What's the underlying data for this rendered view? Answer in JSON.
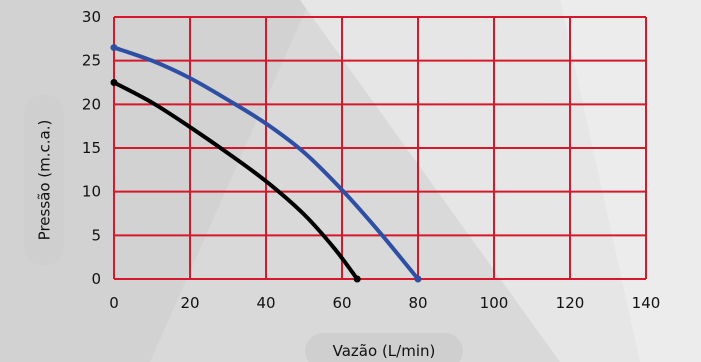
{
  "chart_data": {
    "type": "line",
    "title": "",
    "xlabel": "Vazão (L/min)",
    "ylabel": "Pressão (m.c.a.)",
    "xlim": [
      0,
      140
    ],
    "ylim": [
      0,
      30
    ],
    "x_ticks": [
      "0",
      "20",
      "40",
      "60",
      "80",
      "100",
      "120",
      "140"
    ],
    "y_ticks": [
      "0",
      "5",
      "10",
      "15",
      "20",
      "25",
      "30"
    ],
    "grid": true,
    "colors": {
      "grid": "#d6182b",
      "series_blue": "#2e4fa3",
      "series_black": "#000000"
    },
    "series": [
      {
        "color": "#2e4fa3",
        "points": [
          [
            0,
            26.5
          ],
          [
            10,
            25.0
          ],
          [
            20,
            23.0
          ],
          [
            30,
            20.5
          ],
          [
            40,
            17.8
          ],
          [
            50,
            14.5
          ],
          [
            60,
            10.2
          ],
          [
            70,
            5.3
          ],
          [
            80,
            0
          ]
        ]
      },
      {
        "color": "#000000",
        "points": [
          [
            0,
            22.5
          ],
          [
            10,
            20.2
          ],
          [
            20,
            17.4
          ],
          [
            30,
            14.4
          ],
          [
            40,
            11.2
          ],
          [
            50,
            7.4
          ],
          [
            58,
            3.5
          ],
          [
            64,
            0
          ]
        ]
      }
    ]
  }
}
